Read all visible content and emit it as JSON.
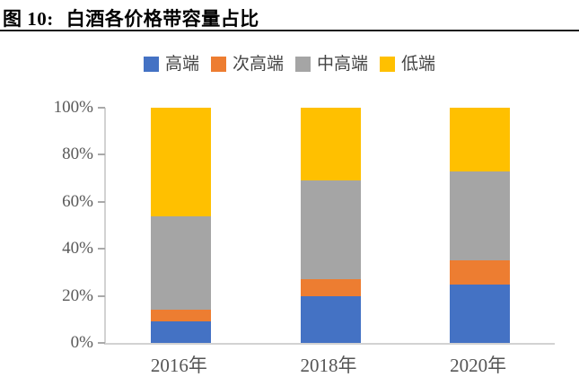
{
  "page": {
    "title_prefix": "图 10:",
    "title_text": "白酒各价格带容量占比"
  },
  "chart_data": {
    "type": "bar",
    "stacked": true,
    "percent_stacked": true,
    "title": "白酒各价格带容量占比",
    "categories": [
      "2016年",
      "2018年",
      "2020年"
    ],
    "series": [
      {
        "name": "高端",
        "color": "#4472C4",
        "values": [
          9,
          20,
          25
        ]
      },
      {
        "name": "次高端",
        "color": "#ED7D31",
        "values": [
          5,
          7,
          10
        ]
      },
      {
        "name": "中高端",
        "color": "#A5A5A5",
        "values": [
          40,
          42,
          38
        ]
      },
      {
        "name": "低端",
        "color": "#FFC000",
        "values": [
          46,
          31,
          27
        ]
      }
    ],
    "xlabel": "",
    "ylabel": "",
    "ylim": [
      0,
      100
    ],
    "ytick_labels": [
      "0%",
      "20%",
      "40%",
      "60%",
      "80%",
      "100%"
    ],
    "legend_position": "top",
    "grid": false
  }
}
